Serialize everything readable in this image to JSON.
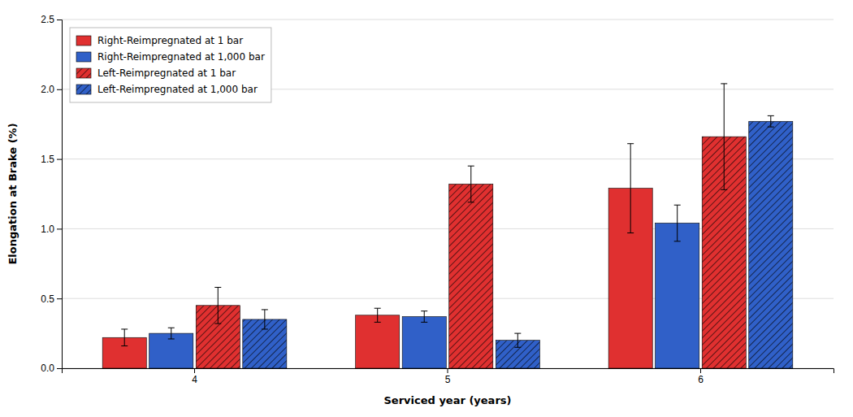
{
  "chart_data": {
    "type": "bar",
    "xlabel": "Serviced year (years)",
    "ylabel": "Elongation at Brake (%)",
    "categories": [
      "4",
      "5",
      "6"
    ],
    "series": [
      {
        "name": "Right-Reimpregnated at 1 bar",
        "color": "#e03030",
        "values": [
          0.22,
          0.38,
          1.29
        ],
        "errors": [
          0.06,
          0.05,
          0.32
        ]
      },
      {
        "name": "Right-Reimpregnated at 1,000 bar",
        "color": "#3060c8",
        "values": [
          0.25,
          0.37,
          1.04
        ],
        "errors": [
          0.04,
          0.04,
          0.13
        ]
      },
      {
        "name": "Left-Reimpregnated at 1 bar",
        "color": "#e03030",
        "values": [
          0.45,
          1.32,
          1.66
        ],
        "errors": [
          0.13,
          0.13,
          0.38
        ]
      },
      {
        "name": "Left-Reimpregnated at 1,000 bar",
        "color": "#3060c8",
        "values": [
          0.35,
          0.2,
          1.77
        ],
        "errors": [
          0.07,
          0.05,
          0.04
        ]
      }
    ],
    "ylim": [
      0.0,
      2.5
    ],
    "yticks": [
      {
        "value": 0.0,
        "label": "0.0"
      },
      0.5,
      {
        "value": 1.0,
        "label": "1.0"
      },
      1.5,
      {
        "value": 2.0,
        "label": "2.0"
      },
      2.5
    ],
    "grid": true,
    "legend": "upper left"
  }
}
